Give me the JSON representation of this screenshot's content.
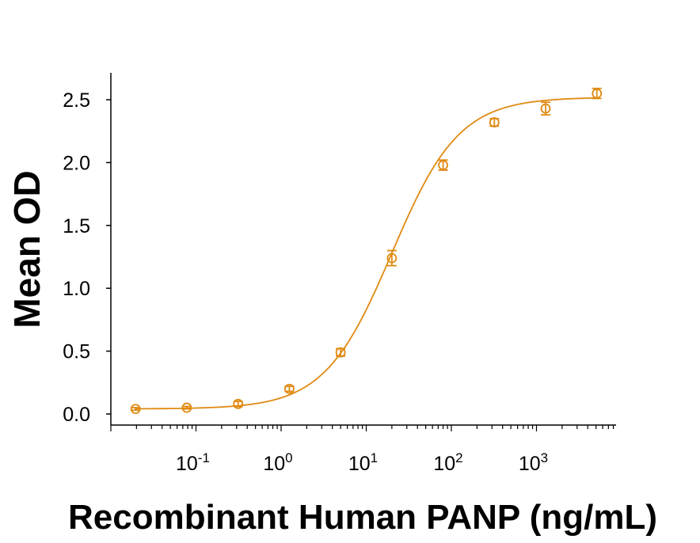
{
  "chart_data": {
    "type": "scatter",
    "title": "",
    "xlabel": "Recombinant Human PANP (ng/mL)",
    "ylabel": "Mean OD",
    "xscale": "log",
    "xlim": [
      0.012,
      6500
    ],
    "ylim": [
      -0.09,
      2.73
    ],
    "x_ticks": [
      {
        "value": 0.1,
        "base": "10",
        "exp": "-1"
      },
      {
        "value": 1,
        "base": "10",
        "exp": "0"
      },
      {
        "value": 10,
        "base": "10",
        "exp": "1"
      },
      {
        "value": 100,
        "base": "10",
        "exp": "2"
      },
      {
        "value": 1000,
        "base": "10",
        "exp": "3"
      }
    ],
    "y_ticks": [
      "0.0",
      "0.5",
      "1.0",
      "1.5",
      "2.0",
      "2.5"
    ],
    "grid": false,
    "color": "#E08A12",
    "series": [
      {
        "name": "Mean OD",
        "x": [
          0.0195,
          0.078,
          0.3125,
          1.25,
          5,
          20,
          80,
          320,
          1280,
          5120
        ],
        "y": [
          0.04,
          0.05,
          0.08,
          0.2,
          0.49,
          1.24,
          1.98,
          2.32,
          2.43,
          2.55
        ],
        "error": [
          0.01,
          0.01,
          0.02,
          0.02,
          0.03,
          0.06,
          0.04,
          0.03,
          0.05,
          0.04
        ]
      }
    ],
    "fit": {
      "model": "4PL",
      "bottom": 0.04,
      "top": 2.52,
      "ec50": 20,
      "hill": 1.1
    }
  }
}
